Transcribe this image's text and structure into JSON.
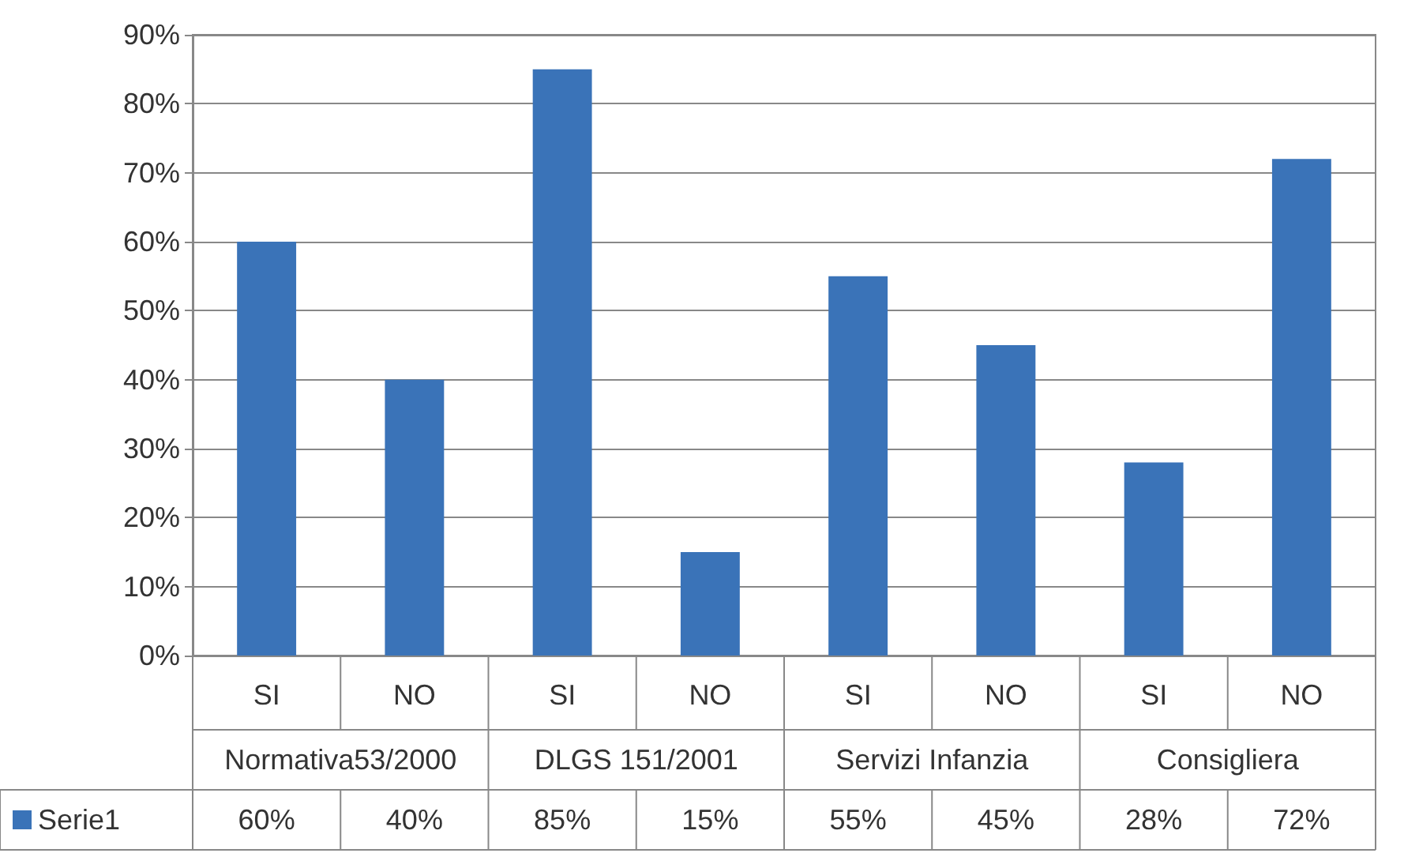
{
  "chart_data": {
    "type": "bar",
    "categories": [
      "SI",
      "NO",
      "SI",
      "NO",
      "SI",
      "NO",
      "SI",
      "NO"
    ],
    "series": [
      {
        "name": "Serie1",
        "color": "#3a73b8",
        "values": [
          60,
          40,
          85,
          15,
          55,
          45,
          28,
          72
        ],
        "value_labels": [
          "60%",
          "40%",
          "85%",
          "15%",
          "55%",
          "45%",
          "28%",
          "72%"
        ]
      }
    ],
    "annotations": [
      "Normativa53/2000",
      "DLGS 151/2001",
      "Servizi Infanzia",
      "Consigliera"
    ],
    "ylim": [
      0,
      90
    ],
    "yticks": [
      {
        "value": 0,
        "label": "0%"
      },
      {
        "value": 10,
        "label": "10%"
      },
      {
        "value": 20,
        "label": "20%"
      },
      {
        "value": 30,
        "label": "30%"
      },
      {
        "value": 40,
        "label": "40%"
      },
      {
        "value": 50,
        "label": "50%"
      },
      {
        "value": 60,
        "label": "60%"
      },
      {
        "value": 70,
        "label": "70%"
      },
      {
        "value": 80,
        "label": "80%"
      },
      {
        "value": 90,
        "label": "90%"
      }
    ],
    "grid": "y",
    "legend": "bottom"
  }
}
